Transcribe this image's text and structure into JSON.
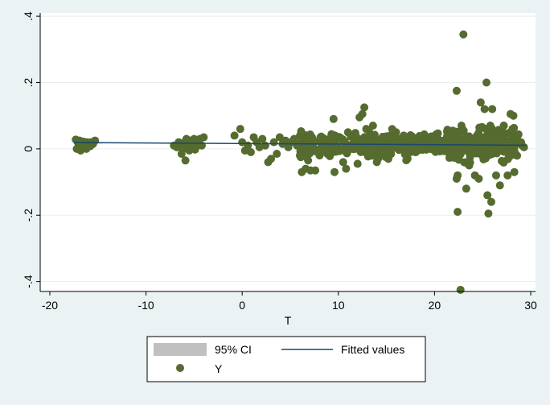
{
  "chart_data": {
    "type": "scatter",
    "title": "",
    "xlabel": "T",
    "ylabel": "",
    "xlim": [
      -21,
      30.5
    ],
    "ylim": [
      -0.43,
      0.41
    ],
    "x_ticks": [
      -20,
      -10,
      0,
      10,
      20,
      30
    ],
    "x_tick_labels": [
      "-20",
      "-10",
      "0",
      "10",
      "20",
      "30"
    ],
    "y_ticks": [
      -0.4,
      -0.2,
      0,
      0.2,
      0.4
    ],
    "y_tick_labels": [
      "-.4",
      "-.2",
      "0",
      ".2",
      ".4"
    ],
    "grid": true,
    "legend_position": "bottom",
    "series": [
      {
        "name": "Y",
        "kind": "scatter",
        "color": "#556b2f",
        "points": [
          [
            -17.3,
            0.028
          ],
          [
            -17.1,
            0.02
          ],
          [
            -16.9,
            0.025
          ],
          [
            -16.7,
            0.015
          ],
          [
            -16.5,
            0.022
          ],
          [
            -16.3,
            0.018
          ],
          [
            -16.1,
            0.02
          ],
          [
            -15.9,
            0.012
          ],
          [
            -15.7,
            0.02
          ],
          [
            -15.5,
            0.015
          ],
          [
            -15.3,
            0.025
          ],
          [
            -17.2,
            0.0
          ],
          [
            -16.8,
            -0.005
          ],
          [
            -16.4,
            0.005
          ],
          [
            -15.8,
            0.008
          ],
          [
            -16.6,
            0.01
          ],
          [
            -17.0,
            0.012
          ],
          [
            -16.2,
            0.0
          ],
          [
            -7.1,
            0.01
          ],
          [
            -6.8,
            0.005
          ],
          [
            -6.5,
            0.015
          ],
          [
            -6.2,
            -0.002
          ],
          [
            -6.0,
            0.02
          ],
          [
            -5.8,
            0.03
          ],
          [
            -5.6,
            0.01
          ],
          [
            -5.4,
            0.025
          ],
          [
            -5.2,
            0.005
          ],
          [
            -5.0,
            0.03
          ],
          [
            -4.8,
            0.015
          ],
          [
            -4.6,
            0.01
          ],
          [
            -4.4,
            0.03
          ],
          [
            -4.2,
            0.01
          ],
          [
            -4.0,
            0.035
          ],
          [
            -5.9,
            -0.035
          ],
          [
            -6.3,
            -0.015
          ],
          [
            -5.5,
            -0.005
          ],
          [
            -4.9,
            -0.002
          ],
          [
            -6.6,
            0.02
          ],
          [
            -5.1,
            0.012
          ],
          [
            -0.8,
            0.04
          ],
          [
            -0.2,
            0.06
          ],
          [
            0.0,
            0.02
          ],
          [
            0.3,
            -0.005
          ],
          [
            0.6,
            0.01
          ],
          [
            0.9,
            -0.01
          ],
          [
            1.2,
            0.035
          ],
          [
            1.5,
            0.02
          ],
          [
            1.8,
            0.005
          ],
          [
            2.1,
            0.03
          ],
          [
            2.4,
            0.01
          ],
          [
            2.7,
            -0.04
          ],
          [
            3.0,
            -0.03
          ],
          [
            3.3,
            0.02
          ],
          [
            3.6,
            -0.015
          ],
          [
            3.9,
            0.035
          ],
          [
            4.2,
            0.015
          ],
          [
            4.5,
            0.025
          ],
          [
            4.8,
            0.005
          ],
          [
            5.1,
            0.02
          ],
          [
            5.4,
            0.03
          ],
          [
            5.7,
            0.01
          ],
          [
            6.0,
            -0.02
          ],
          [
            6.2,
            -0.07
          ],
          [
            6.6,
            -0.06
          ],
          [
            7.1,
            -0.065
          ],
          [
            7.6,
            -0.065
          ],
          [
            9.5,
            0.09
          ],
          [
            9.6,
            -0.07
          ],
          [
            10.8,
            -0.06
          ],
          [
            12.2,
            0.095
          ],
          [
            12.5,
            0.105
          ],
          [
            12.7,
            0.125
          ],
          [
            12.9,
            0.06
          ],
          [
            13.6,
            0.07
          ],
          [
            11.0,
            0.05
          ],
          [
            10.5,
            -0.04
          ],
          [
            12.0,
            -0.045
          ],
          [
            14.0,
            -0.04
          ],
          [
            15.2,
            -0.03
          ],
          [
            16.0,
            0.05
          ],
          [
            16.8,
            0.04
          ],
          [
            22.3,
            0.175
          ],
          [
            22.4,
            -0.08
          ],
          [
            22.3,
            -0.09
          ],
          [
            22.4,
            -0.19
          ],
          [
            22.7,
            -0.425
          ],
          [
            23.0,
            0.345
          ],
          [
            23.3,
            -0.12
          ],
          [
            22.8,
            0.07
          ],
          [
            22.6,
            -0.02
          ],
          [
            23.6,
            -0.05
          ],
          [
            24.2,
            -0.08
          ],
          [
            24.6,
            -0.09
          ],
          [
            24.8,
            0.14
          ],
          [
            25.2,
            0.12
          ],
          [
            25.4,
            0.2
          ],
          [
            25.5,
            -0.14
          ],
          [
            25.6,
            -0.195
          ],
          [
            25.9,
            -0.16
          ],
          [
            26.0,
            0.12
          ],
          [
            25.8,
            0.07
          ],
          [
            26.8,
            -0.11
          ],
          [
            26.4,
            -0.08
          ],
          [
            27.6,
            -0.08
          ],
          [
            27.9,
            0.105
          ],
          [
            28.2,
            0.1
          ],
          [
            28.3,
            -0.07
          ],
          [
            28.1,
            0.06
          ],
          [
            27.2,
            0.07
          ],
          [
            26.5,
            0.05
          ],
          [
            21.9,
            0.055
          ],
          [
            28.8,
            0.02
          ],
          [
            29.1,
            0.01
          ],
          [
            29.3,
            0.005
          ],
          [
            23.8,
            0.03
          ],
          [
            24.4,
            0.04
          ],
          [
            26.9,
            0.03
          ]
        ],
        "dense_cluster": {
          "x_range": [
            6.0,
            29.0
          ],
          "y_center": 0.012,
          "y_spread": 0.045,
          "count": 560
        }
      },
      {
        "name": "Fitted values",
        "kind": "line",
        "color": "#1a476f",
        "x": [
          -17.5,
          29.5
        ],
        "y": [
          0.019,
          0.011
        ]
      },
      {
        "name": "95% CI",
        "kind": "band",
        "color": "#c0c0c0"
      }
    ]
  },
  "legend": {
    "items": [
      {
        "label": "95% CI",
        "kind": "band",
        "color": "#c0c0c0"
      },
      {
        "label": "Fitted values",
        "kind": "line",
        "color": "#1a476f"
      },
      {
        "label": "Y",
        "kind": "marker",
        "color": "#556b2f"
      }
    ]
  },
  "colors": {
    "background": "#eaf2f3",
    "plot_area": "#ffffff",
    "gridline": "#e8eef0",
    "axis": "#000000"
  }
}
